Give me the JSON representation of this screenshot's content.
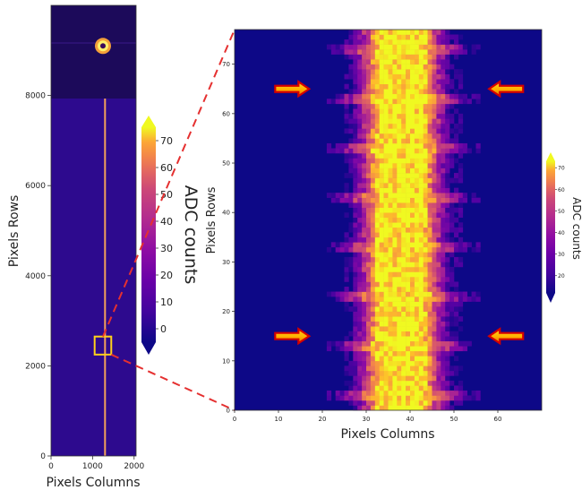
{
  "chart_data": [
    {
      "type": "heatmap",
      "xlabel": "Pixels Columns",
      "ylabel": "Pixels Rows",
      "xlim": [
        0,
        2048
      ],
      "ylim": [
        0,
        10000
      ],
      "xticks": [
        0,
        1000,
        2000
      ],
      "yticks": [
        0,
        2000,
        4000,
        6000,
        8000
      ],
      "stripe_column": 1300,
      "ring_center": [
        1250,
        9100
      ],
      "selection_box": {
        "x": [
          1050,
          1450
        ],
        "y": [
          2250,
          2650
        ]
      },
      "colorbar": {
        "label": "ADC counts",
        "range": [
          -5,
          75
        ],
        "ticks": [
          0,
          10,
          20,
          30,
          40,
          50,
          60,
          70
        ]
      }
    },
    {
      "type": "heatmap",
      "xlabel": "Pixels Columns",
      "ylabel": "Pixels Rows",
      "xlim": [
        0,
        70
      ],
      "ylim": [
        0,
        77
      ],
      "xticks": [
        0,
        10,
        20,
        30,
        40,
        50,
        60
      ],
      "yticks": [
        0,
        10,
        20,
        30,
        40,
        50,
        60,
        70
      ],
      "band_center_column": 38,
      "band_core_halfwidth": 5,
      "band_halo_halfwidth": 11,
      "band_segment_height": 10,
      "arrows_at_rows": [
        15,
        65
      ],
      "colorbar": {
        "label": "ADC counts",
        "range": [
          12,
          73
        ],
        "ticks": [
          20,
          30,
          40,
          50,
          60,
          70
        ]
      }
    }
  ]
}
